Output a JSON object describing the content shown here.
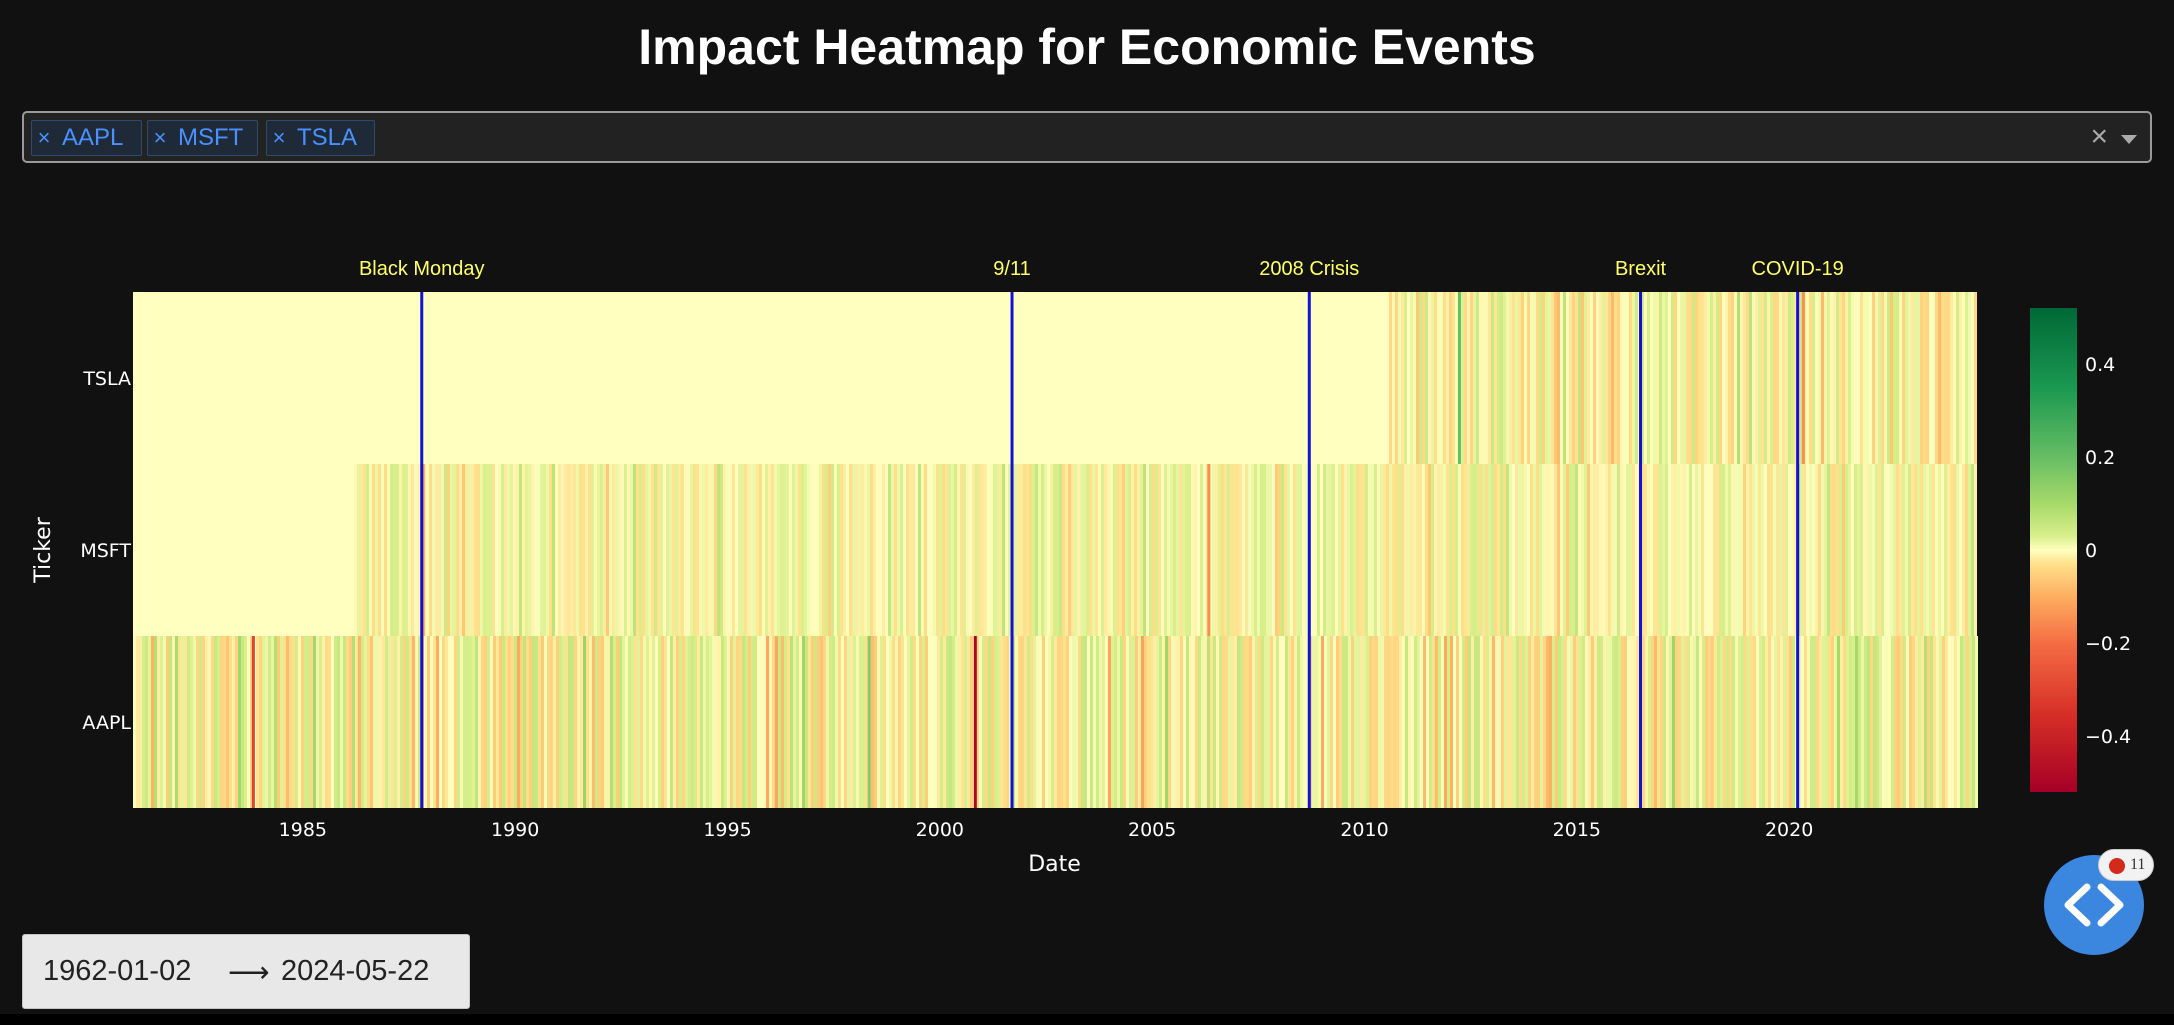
{
  "title": "Impact Heatmap for Economic Events",
  "ticker_selector": {
    "selected": [
      "AAPL",
      "MSFT",
      "TSLA"
    ],
    "chip_remove_glyph": "×",
    "clear_glyph": "×"
  },
  "date_range": {
    "start": "1962-01-02",
    "arrow": "⟶",
    "end": "2024-05-22"
  },
  "error_badge": {
    "count": "11"
  },
  "colors": {
    "event_line": "#1111dd",
    "event_label": "#ffff66",
    "chip_text": "#4a90ff",
    "background": "#111111"
  },
  "chart_data": {
    "type": "heatmap",
    "title": "",
    "xlabel": "Date",
    "ylabel": "Ticker",
    "x_range": [
      1981.0,
      2024.4
    ],
    "x_ticks": [
      1985,
      1990,
      1995,
      2000,
      2005,
      2010,
      2015,
      2020
    ],
    "y_categories": [
      "TSLA",
      "MSFT",
      "AAPL"
    ],
    "series_start": {
      "TSLA": 2010.5,
      "MSFT": 1986.2,
      "AAPL": 1981.0
    },
    "notable_values": [
      {
        "ticker": "AAPL",
        "x": 1983.8,
        "value": -0.3
      },
      {
        "ticker": "AAPL",
        "x": 2000.8,
        "value": -0.5
      },
      {
        "ticker": "AAPL",
        "x": 1998.3,
        "value": 0.15
      },
      {
        "ticker": "MSFT",
        "x": 2006.3,
        "value": -0.15
      },
      {
        "ticker": "MSFT",
        "x": 1987.8,
        "value": -0.12
      },
      {
        "ticker": "TSLA",
        "x": 2012.2,
        "value": 0.2
      },
      {
        "ticker": "TSLA",
        "x": 2020.3,
        "value": -0.15
      }
    ],
    "events": [
      {
        "name": "Black Monday",
        "x": 1987.8
      },
      {
        "name": "9/11",
        "x": 2001.7
      },
      {
        "name": "2008 Crisis",
        "x": 2008.7
      },
      {
        "name": "Brexit",
        "x": 2016.5
      },
      {
        "name": "COVID-19",
        "x": 2020.2
      }
    ],
    "colorscale": "RdYlGn",
    "zrange": [
      -0.52,
      0.52
    ],
    "colorbar_ticks": [
      {
        "value": 0.4,
        "label": "0.4"
      },
      {
        "value": 0.2,
        "label": "0.2"
      },
      {
        "value": 0,
        "label": "0"
      },
      {
        "value": -0.2,
        "label": "−0.2"
      },
      {
        "value": -0.4,
        "label": "−0.4"
      }
    ],
    "grid": false
  }
}
